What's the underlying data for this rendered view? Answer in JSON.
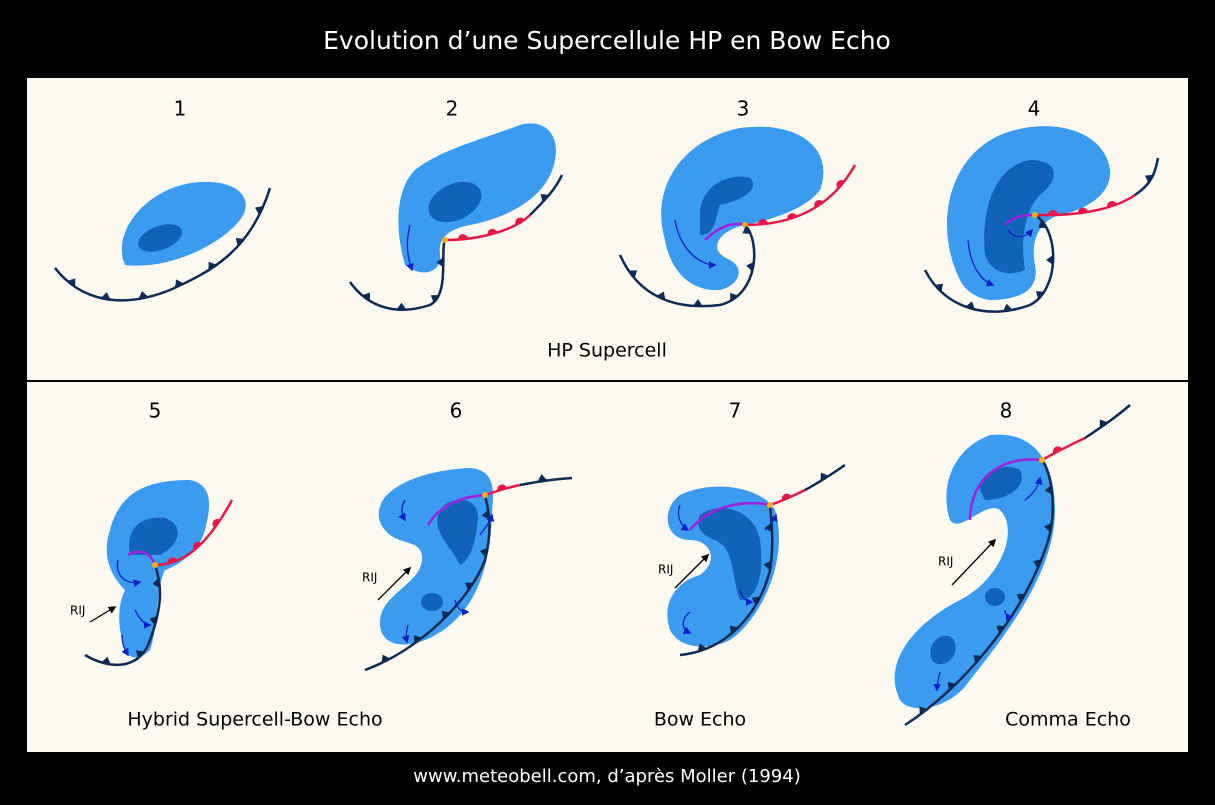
{
  "title": "Evolution d’une Supercellule HP en Bow Echo",
  "stages": [
    {
      "number": "1"
    },
    {
      "number": "2"
    },
    {
      "number": "3"
    },
    {
      "number": "4"
    },
    {
      "number": "5",
      "arrow_label": "RIJ"
    },
    {
      "number": "6",
      "arrow_label": "RIJ"
    },
    {
      "number": "7",
      "arrow_label": "RIJ"
    },
    {
      "number": "8",
      "arrow_label": "RIJ"
    }
  ],
  "captions": [
    "HP Supercell",
    "Hybrid Supercell-Bow Echo",
    "Bow Echo",
    "Comma Echo"
  ],
  "footer": "www.meteobell.com, d’après Moller (1994)"
}
